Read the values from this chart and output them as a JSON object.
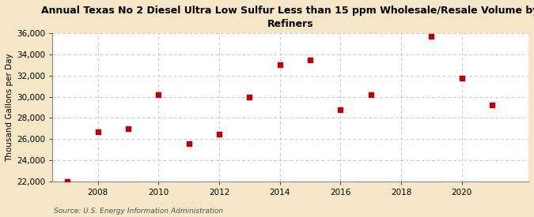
{
  "title_line1": "Annual Texas No 2 Diesel Ultra Low Sulfur Less than 15 ppm Wholesale/Resale Volume by",
  "title_line2": "Refiners",
  "ylabel": "Thousand Gallons per Day",
  "source": "Source: U.S. Energy Information Administration",
  "background_color": "#f5e6c8",
  "plot_background_color": "#ffffff",
  "marker_color": "#c00000",
  "marker_size": 25,
  "years": [
    2007,
    2008,
    2009,
    2010,
    2011,
    2012,
    2013,
    2014,
    2015,
    2016,
    2017,
    2019,
    2020,
    2021
  ],
  "values": [
    22000,
    26700,
    27000,
    30200,
    25600,
    26500,
    30000,
    33000,
    33500,
    28800,
    30200,
    35700,
    31800,
    29200
  ],
  "ylim": [
    22000,
    36000
  ],
  "yticks": [
    22000,
    24000,
    26000,
    28000,
    30000,
    32000,
    34000,
    36000
  ],
  "xlim": [
    2006.5,
    2022.2
  ],
  "xticks": [
    2008,
    2010,
    2012,
    2014,
    2016,
    2018,
    2020
  ],
  "grid_color": "#bbbbbb",
  "title_fontsize": 9,
  "axis_fontsize": 7.5,
  "tick_fontsize": 7.5,
  "source_fontsize": 6.5
}
